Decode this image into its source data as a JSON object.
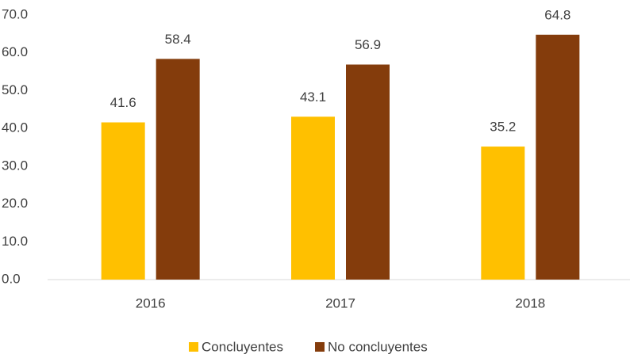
{
  "chart_data": {
    "type": "bar",
    "categories": [
      "2016",
      "2017",
      "2018"
    ],
    "series": [
      {
        "name": "Concluyentes",
        "color": "#FFC000",
        "values": [
          41.6,
          43.1,
          35.2
        ]
      },
      {
        "name": "No concluyentes",
        "color": "#843C0C",
        "values": [
          58.4,
          56.9,
          64.8
        ]
      }
    ],
    "ylim": [
      0,
      70
    ],
    "yticks": [
      {
        "value": 0,
        "label": "0.0"
      },
      {
        "value": 10,
        "label": "10.0"
      },
      {
        "value": 20,
        "label": "20.0"
      },
      {
        "value": 30,
        "label": "30.0"
      },
      {
        "value": 40,
        "label": "40.0"
      },
      {
        "value": 50,
        "label": "50.0"
      },
      {
        "value": 60,
        "label": "60.0"
      },
      {
        "value": 70,
        "label": "70.0"
      }
    ],
    "grid": false,
    "legend": "bottom"
  }
}
